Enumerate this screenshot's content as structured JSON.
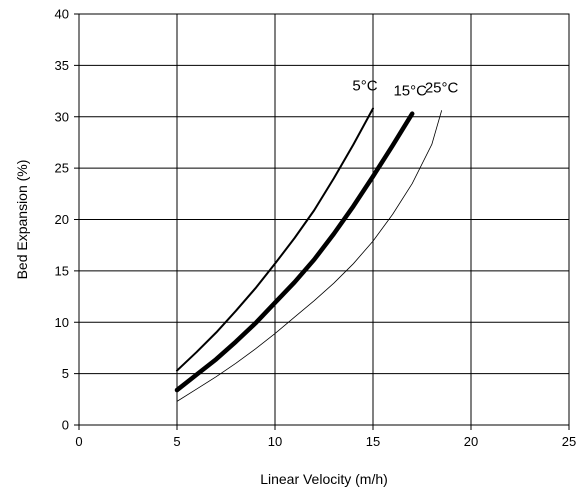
{
  "chart_data": {
    "type": "line",
    "xlabel": "Linear Velocity (m/h)",
    "ylabel": "Bed Expansion (%)",
    "xlim": [
      0,
      25
    ],
    "ylim": [
      0,
      40
    ],
    "x_ticks": [
      0,
      5,
      10,
      15,
      20,
      25
    ],
    "y_ticks": [
      0,
      5,
      10,
      15,
      20,
      25,
      30,
      35,
      40
    ],
    "grid": true,
    "legend": "none (inline labels at curve ends)",
    "series": [
      {
        "name": "5°C",
        "line_style": "medium solid",
        "x": [
          5,
          6,
          7,
          8,
          9,
          10,
          11,
          12,
          13,
          14,
          15
        ],
        "y": [
          5.3,
          7.1,
          9.0,
          11.1,
          13.3,
          15.7,
          18.2,
          20.9,
          24.0,
          27.3,
          30.8
        ]
      },
      {
        "name": "15°C",
        "line_style": "thick solid",
        "x": [
          5,
          6,
          7,
          8,
          9,
          10,
          11,
          12,
          13,
          14,
          15,
          16,
          17
        ],
        "y": [
          3.4,
          4.9,
          6.4,
          8.1,
          9.9,
          11.9,
          13.9,
          16.1,
          18.6,
          21.3,
          24.2,
          27.2,
          30.3
        ]
      },
      {
        "name": "25°C",
        "line_style": "thin solid",
        "x": [
          5,
          6,
          7,
          8,
          9,
          10,
          11,
          12,
          13,
          14,
          15,
          16,
          17,
          18,
          18.5
        ],
        "y": [
          2.3,
          3.5,
          4.7,
          6.0,
          7.4,
          8.9,
          10.5,
          12.1,
          13.8,
          15.7,
          17.9,
          20.5,
          23.5,
          27.3,
          30.6
        ]
      }
    ]
  }
}
